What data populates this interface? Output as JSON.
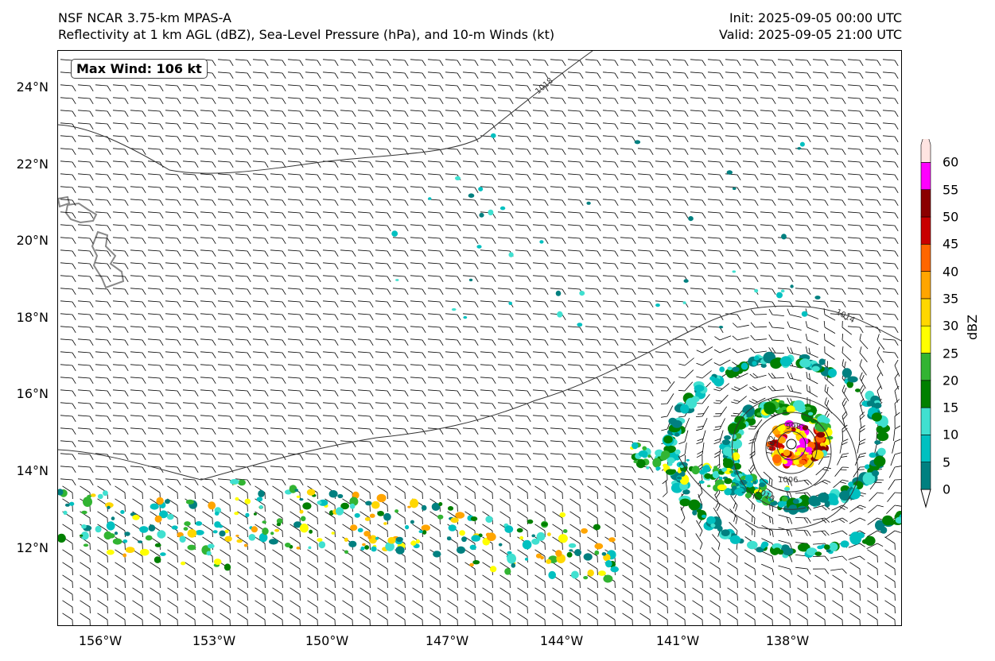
{
  "header": {
    "title_line1": "NSF NCAR 3.75-km MPAS-A",
    "title_line2": "Reflectivity at 1 km AGL (dBZ), Sea-Level Pressure (hPa), and 10-m Winds (kt)",
    "init": "Init: 2025-09-05 00:00 UTC",
    "valid": "Valid: 2025-09-05 21:00 UTC"
  },
  "map": {
    "max_wind_label": "Max Wind: 106 kt",
    "extent": {
      "lon_min": -157.2,
      "lon_max": -134.9,
      "lat_min": 10.0,
      "lat_max": 25.0
    },
    "lat_ticks": [
      {
        "value": 24,
        "label": "24°N"
      },
      {
        "value": 22,
        "label": "22°N"
      },
      {
        "value": 20,
        "label": "20°N"
      },
      {
        "value": 18,
        "label": "18°N"
      },
      {
        "value": 16,
        "label": "16°N"
      },
      {
        "value": 14,
        "label": "14°N"
      },
      {
        "value": 12,
        "label": "12°N"
      }
    ],
    "lon_ticks": [
      {
        "value": -156,
        "label": "156°W"
      },
      {
        "value": -153,
        "label": "153°W"
      },
      {
        "value": -150,
        "label": "150°W"
      },
      {
        "value": -147,
        "label": "147°W"
      },
      {
        "value": -144,
        "label": "144°W"
      },
      {
        "value": -141,
        "label": "141°W"
      },
      {
        "value": -138,
        "label": "138°W"
      }
    ],
    "isobar_labels": [
      "1018",
      "1014",
      "1010",
      "1006",
      "1002",
      "998"
    ],
    "storm_center": {
      "lon": -137.8,
      "lat": 14.8
    }
  },
  "colorbar": {
    "label": "dBZ",
    "ticks": [
      "0",
      "5",
      "10",
      "15",
      "20",
      "25",
      "30",
      "35",
      "40",
      "45",
      "50",
      "55",
      "60"
    ],
    "colors": [
      "#008080",
      "#00c0c0",
      "#40e0d0",
      "#008000",
      "#32b432",
      "#ffff00",
      "#ffd700",
      "#ffa500",
      "#ff6600",
      "#c80000",
      "#8b0000",
      "#ff00ff",
      "#ffe4e1"
    ]
  },
  "colors": {
    "isobar": "#333333",
    "barb": "#000000",
    "coast": "#888888"
  }
}
